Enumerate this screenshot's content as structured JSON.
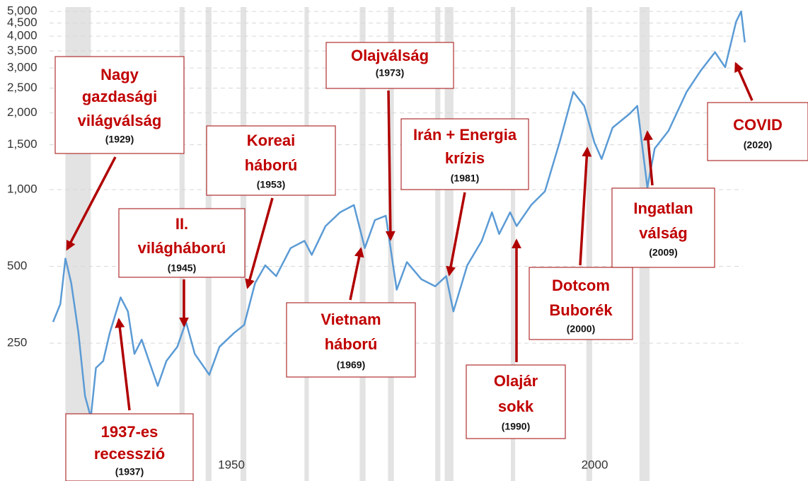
{
  "chart_data": {
    "type": "line",
    "log_y": true,
    "grid": true,
    "x": [
      1927.3,
      1928.3,
      1929,
      1929.8,
      1930.8,
      1931.7,
      1932.5,
      1933.2,
      1934.2,
      1935.1,
      1936.6,
      1937.6,
      1938.5,
      1939.5,
      1940.5,
      1941.7,
      1942.9,
      1944.4,
      1945.6,
      1946.8,
      1948.8,
      1950.2,
      1952.2,
      1953.6,
      1955.1,
      1956.5,
      1958,
      1960,
      1961.9,
      1962.9,
      1964.8,
      1966.8,
      1968.7,
      1970.2,
      1971.6,
      1973.1,
      1974.6,
      1976,
      1978,
      1979.9,
      1981.4,
      1982.4,
      1984.3,
      1986.3,
      1987.7,
      1988.7,
      1990.2,
      1991.1,
      1993.1,
      1995,
      1997,
      1998.9,
      2000.4,
      2001.8,
      2002.8,
      2004.3,
      2006.7,
      2007.7,
      2009.1,
      2010.1,
      2012,
      2014.5,
      2016.4,
      2018.4,
      2019.8,
      2021.3,
      2022,
      2022.5
    ],
    "series": [
      {
        "color": "#5b9bd5",
        "values": [
          303,
          356,
          537,
          430,
          274,
          155,
          128,
          200,
          213,
          274,
          378,
          333,
          227,
          258,
          213,
          170,
          213,
          242,
          303,
          227,
          188,
          242,
          274,
          295,
          430,
          505,
          458,
          590,
          630,
          555,
          720,
          815,
          870,
          590,
          760,
          790,
          405,
          520,
          445,
          418,
          458,
          333,
          505,
          630,
          815,
          670,
          815,
          720,
          870,
          985,
          1530,
          2420,
          2130,
          1530,
          1320,
          1750,
          1990,
          2130,
          1020,
          1450,
          1700,
          2420,
          2920,
          3460,
          3020,
          4550,
          5000,
          3780
        ]
      }
    ],
    "recession_color": "#e3e3e3",
    "recessions": [
      [
        1929,
        1932.5
      ],
      [
        1944.7,
        1945.4
      ],
      [
        1948.3,
        1949.1
      ],
      [
        1953.1,
        1953.9
      ],
      [
        1961.9,
        1962.5
      ],
      [
        1969.5,
        1970.3
      ],
      [
        1973.4,
        1974.2
      ],
      [
        1979.9,
        1980.6
      ],
      [
        1981.2,
        1982.4
      ],
      [
        1990.3,
        1990.9
      ],
      [
        2000.7,
        2001.5
      ],
      [
        2008,
        2009.4
      ]
    ],
    "xlim": [
      1927.3,
      2031.2
    ],
    "xticks": [
      1950,
      2000
    ],
    "ylim": [
      93,
      5200
    ],
    "yticks": [
      250,
      500,
      {
        "value": 1000,
        "label": "1,000"
      },
      {
        "value": 1500,
        "label": "1,500"
      },
      {
        "value": 2000,
        "label": "2,000"
      },
      {
        "value": 2500,
        "label": "2,500"
      },
      {
        "value": 3000,
        "label": "3,000"
      },
      {
        "value": 3500,
        "label": "3,500"
      },
      {
        "value": 4000,
        "label": "4,000"
      },
      {
        "value": 4500,
        "label": "4,500"
      },
      {
        "value": 5000,
        "label": "5,000"
      }
    ],
    "annotation_color": "#c00000",
    "annotations": [
      {
        "lines": [
          "Nagy",
          "gazdasági",
          "világválság"
        ],
        "year": "(1929)"
      },
      {
        "lines": [
          "1937-es",
          "recesszió"
        ],
        "year": "(1937)"
      },
      {
        "lines": [
          "II.",
          "világháború"
        ],
        "year": "(1945)"
      },
      {
        "lines": [
          "Koreai",
          "háború"
        ],
        "year": "(1953)"
      },
      {
        "lines": [
          "Vietnam",
          "háború"
        ],
        "year": "(1969)"
      },
      {
        "lines": [
          "Olajválság"
        ],
        "year": "(1973)"
      },
      {
        "lines": [
          "Irán + Energia",
          "krízis"
        ],
        "year": "(1981)"
      },
      {
        "lines": [
          "Olajár",
          "sokk"
        ],
        "year": "(1990)"
      },
      {
        "lines": [
          "Dotcom",
          "Buborék"
        ],
        "year": "(2000)"
      },
      {
        "lines": [
          "Ingatlan",
          "válság"
        ],
        "year": "(2009)"
      },
      {
        "lines": [
          "COVID"
        ],
        "year": "(2020)"
      }
    ]
  }
}
